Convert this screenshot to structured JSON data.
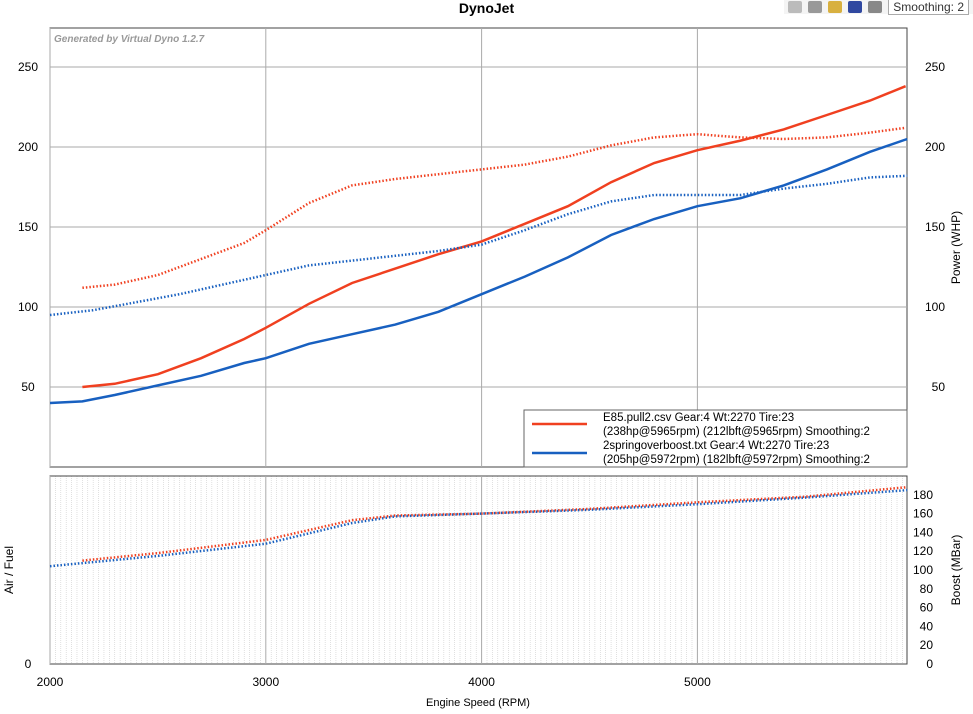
{
  "toolbar": {
    "icons": [
      "zoom-icon",
      "tools-icon",
      "copy-icon",
      "save-icon",
      "print-icon"
    ],
    "smoothing": "Smoothing: 2"
  },
  "chart_data": [
    {
      "type": "line",
      "title": "DynoJet",
      "watermark": "Generated by Virtual Dyno 1.2.7",
      "xlabel": "Engine Speed (RPM)",
      "ylabel_right": "Power (WHP)",
      "xlim": [
        2000,
        5970
      ],
      "ylim": [
        0,
        274
      ],
      "xticks": [
        2000,
        3000,
        4000,
        5000
      ],
      "yticks": [
        50,
        100,
        150,
        200,
        250
      ],
      "grid": true,
      "legend_placement": "bottom-right",
      "legend": [
        "E85.pull2.csv Gear:4 Wt:2270 Tire:23",
        "(238hp@5965rpm) (212lbft@5965rpm) Smoothing:2",
        "2springoverboost.txt Gear:4 Wt:2270 Tire:23",
        "(205hp@5972rpm) (182lbft@5972rpm) Smoothing:2"
      ],
      "series": [
        {
          "file": "E85",
          "style": "solid",
          "color": "#f04020",
          "x": [
            2150,
            2300,
            2500,
            2700,
            2900,
            3000,
            3200,
            3400,
            3600,
            3800,
            4000,
            4200,
            4400,
            4600,
            4800,
            5000,
            5200,
            5400,
            5600,
            5800,
            5965
          ],
          "y": [
            50,
            52,
            58,
            68,
            80,
            87,
            102,
            115,
            124,
            133,
            141,
            152,
            163,
            178,
            190,
            198,
            204,
            211,
            220,
            229,
            238
          ]
        },
        {
          "file": "E85",
          "style": "dotted",
          "color": "#f04020",
          "x": [
            2150,
            2300,
            2500,
            2700,
            2900,
            3000,
            3200,
            3400,
            3600,
            3800,
            4000,
            4200,
            4400,
            4600,
            4800,
            5000,
            5200,
            5400,
            5600,
            5800,
            5965
          ],
          "y": [
            112,
            114,
            120,
            130,
            140,
            148,
            165,
            176,
            180,
            183,
            186,
            189,
            194,
            201,
            206,
            208,
            206,
            205,
            206,
            209,
            212
          ]
        },
        {
          "file": "2spring",
          "style": "solid",
          "color": "#1860c0",
          "x": [
            2000,
            2150,
            2300,
            2500,
            2700,
            2900,
            3000,
            3200,
            3400,
            3600,
            3800,
            4000,
            4200,
            4400,
            4600,
            4800,
            5000,
            5200,
            5400,
            5600,
            5800,
            5972
          ],
          "y": [
            40,
            41,
            45,
            51,
            57,
            65,
            68,
            77,
            83,
            89,
            97,
            108,
            119,
            131,
            145,
            155,
            163,
            168,
            176,
            186,
            197,
            205
          ]
        },
        {
          "file": "2spring",
          "style": "dotted",
          "color": "#1860c0",
          "x": [
            2000,
            2200,
            2400,
            2600,
            2800,
            3000,
            3200,
            3400,
            3600,
            3800,
            4000,
            4200,
            4400,
            4600,
            4800,
            5000,
            5200,
            5400,
            5600,
            5800,
            5972
          ],
          "y": [
            95,
            98,
            103,
            108,
            114,
            120,
            126,
            129,
            132,
            135,
            139,
            148,
            158,
            166,
            170,
            170,
            170,
            174,
            177,
            181,
            182
          ]
        }
      ]
    },
    {
      "type": "line",
      "ylabel_left": "Air / Fuel",
      "ylabel_right": "Boost (MBar)",
      "xlim": [
        2000,
        5970
      ],
      "ylim": [
        0,
        200
      ],
      "yticks_left": [
        0
      ],
      "yticks": [
        0,
        20,
        40,
        60,
        80,
        100,
        120,
        140,
        160,
        180
      ],
      "xticks": [
        2000,
        3000,
        4000,
        5000
      ],
      "series": [
        {
          "style": "dotted",
          "color": "#f04020",
          "x": [
            2150,
            2500,
            3000,
            3400,
            3600,
            4000,
            4500,
            5000,
            5500,
            5965
          ],
          "y": [
            110,
            118,
            132,
            153,
            158,
            160,
            165,
            172,
            178,
            188
          ]
        },
        {
          "style": "dotted",
          "color": "#1860c0",
          "x": [
            2000,
            2500,
            3000,
            3400,
            3600,
            4000,
            4500,
            5000,
            5500,
            5972
          ],
          "y": [
            104,
            115,
            128,
            150,
            157,
            160,
            164,
            170,
            177,
            185
          ]
        }
      ]
    }
  ]
}
